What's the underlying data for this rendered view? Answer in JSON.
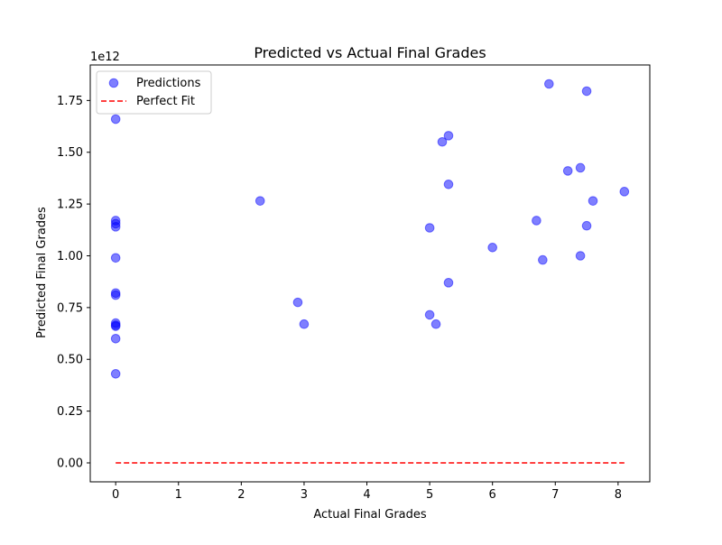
{
  "chart_data": {
    "type": "scatter",
    "title": "Predicted vs Actual Final Grades",
    "xlabel": "Actual Final Grades",
    "ylabel": "Predicted Final Grades",
    "y_offset_label": "1e12",
    "xlim": [
      -0.405,
      8.505
    ],
    "ylim": [
      -0.0915,
      1.9215
    ],
    "y_scale": 1000000000000.0,
    "x_ticks": [
      0,
      1,
      2,
      3,
      4,
      5,
      6,
      7,
      8
    ],
    "y_ticks": [
      0.0,
      0.25,
      0.5,
      0.75,
      1.0,
      1.25,
      1.5,
      1.75
    ],
    "x_tick_labels": [
      "0",
      "1",
      "2",
      "3",
      "4",
      "5",
      "6",
      "7",
      "8"
    ],
    "y_tick_labels": [
      "0.00",
      "0.25",
      "0.50",
      "0.75",
      "1.00",
      "1.25",
      "1.50",
      "1.75"
    ],
    "grid": false,
    "legend_position": "top-left",
    "series": [
      {
        "name": "Predictions",
        "kind": "scatter",
        "color": "#0000ff",
        "x": [
          0,
          0,
          0,
          0,
          0,
          0,
          0,
          0,
          0,
          0,
          0,
          0,
          2.3,
          2.9,
          3.0,
          5.0,
          5.0,
          5.1,
          5.2,
          5.3,
          5.3,
          5.3,
          6.0,
          6.7,
          6.8,
          6.9,
          7.2,
          7.4,
          7.4,
          7.5,
          7.5,
          7.6,
          8.1
        ],
        "y": [
          1.66,
          1.17,
          1.155,
          1.14,
          0.99,
          0.82,
          0.81,
          0.675,
          0.665,
          0.66,
          0.6,
          0.43,
          1.265,
          0.775,
          0.67,
          1.135,
          0.715,
          0.67,
          1.55,
          1.58,
          1.345,
          0.87,
          1.04,
          1.17,
          0.98,
          1.83,
          1.41,
          1.425,
          1.0,
          1.795,
          1.145,
          1.265,
          1.31
        ]
      },
      {
        "name": "Perfect Fit",
        "kind": "line",
        "color": "#ff0000",
        "dash": "dashed",
        "x": [
          0,
          8.1
        ],
        "y": [
          0,
          0
        ]
      }
    ]
  }
}
